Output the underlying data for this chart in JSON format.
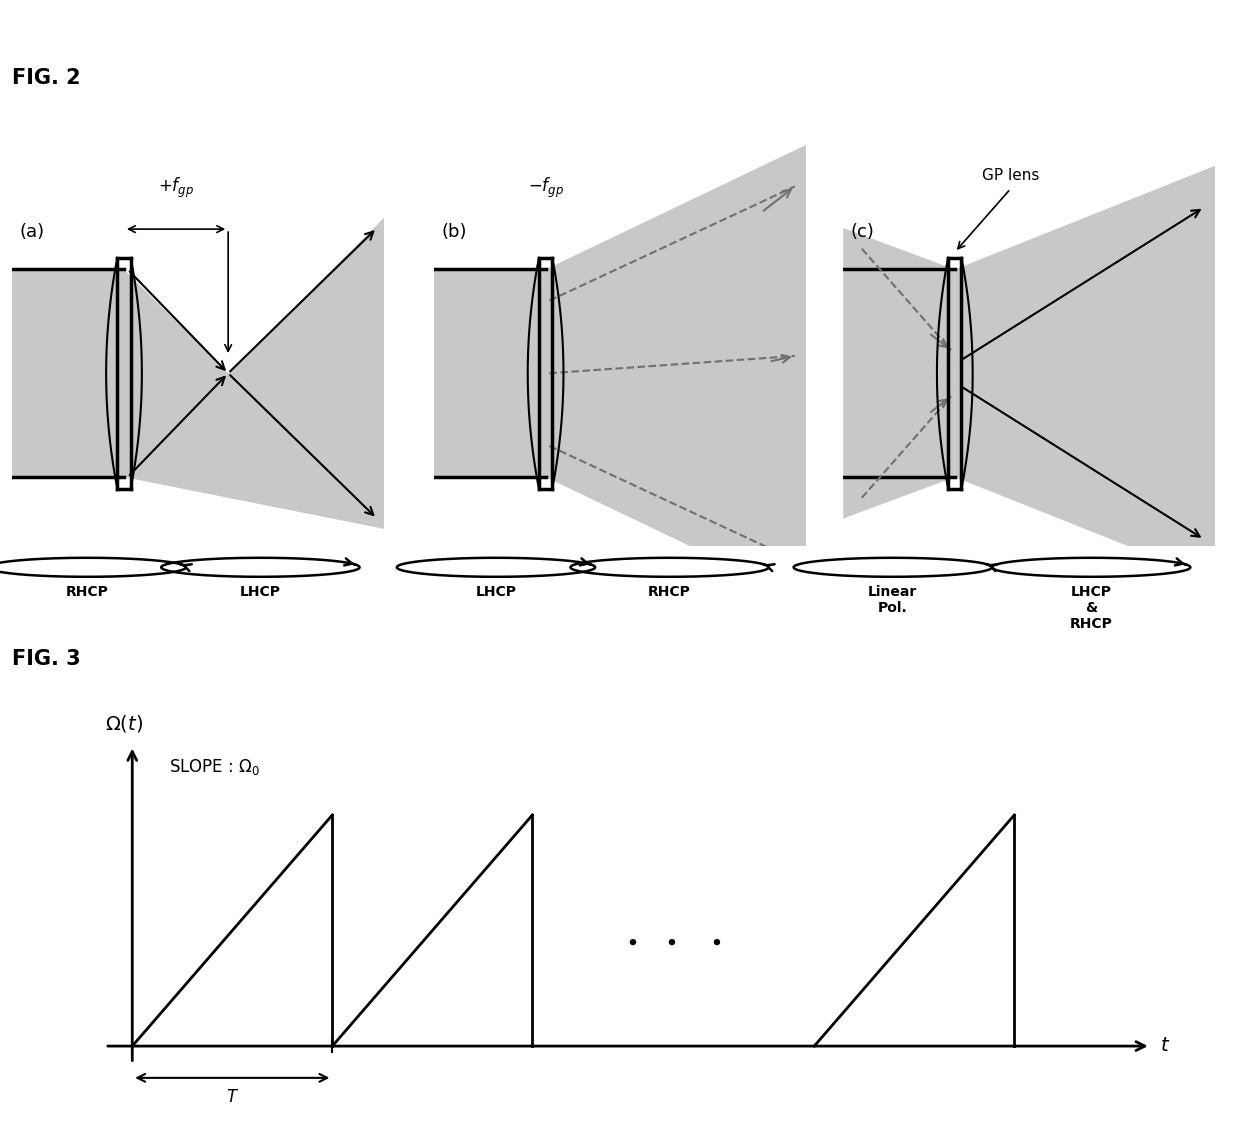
{
  "fig2_title": "FIG. 2",
  "fig3_title": "FIG. 3",
  "subfig_labels": [
    "(a)",
    "(b)",
    "(c)"
  ],
  "subfig_a_flabel": "$+f_{gp}$",
  "subfig_b_flabel": "$-f_{gp}$",
  "subfig_c_toplabel": "GP lens",
  "subfig_a_pol1": "RHCP",
  "subfig_a_pol2": "LHCP",
  "subfig_b_pol1": "LHCP",
  "subfig_b_pol2": "RHCP",
  "subfig_c_pol1": "Linear\nPol.",
  "subfig_c_pol2": "LHCP\n&\nRHCP",
  "fig3_ylabel": "$\\Omega(t)$",
  "fig3_xlabel": "$t$",
  "fig3_slope_label": "SLOPE : $\\Omega_0$",
  "fig3_period_label": "$T$",
  "gray_light": "#c8c8c8",
  "gray_dark": "#a0a0a0",
  "line_color": "#000000",
  "dashed_color": "#707070"
}
